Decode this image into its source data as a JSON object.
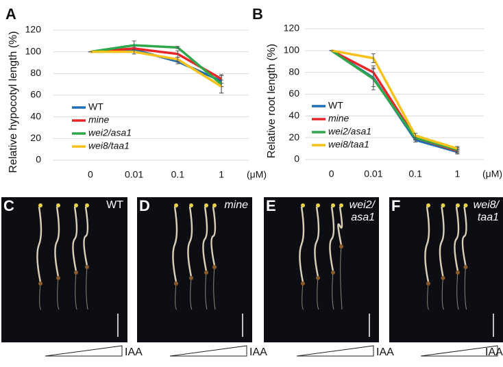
{
  "chart_data": [
    {
      "type": "line",
      "label": "A",
      "ylabel": "Relative hypocotyl length (%)",
      "xlabel": "(μM)",
      "categories": [
        "0",
        "0.01",
        "0.1",
        "1"
      ],
      "ylim": [
        0,
        120
      ],
      "yticks": [
        0,
        20,
        40,
        60,
        80,
        100,
        120
      ],
      "grid": true,
      "series": [
        {
          "name": "WT",
          "color": "#1f6fb4",
          "font_style": "normal",
          "values": [
            100,
            102,
            91,
            73
          ],
          "errors": [
            0,
            2,
            2,
            5
          ]
        },
        {
          "name": "mine",
          "color": "#e8262a",
          "font_style": "italic",
          "values": [
            100,
            103,
            98,
            75
          ],
          "errors": [
            0,
            2,
            3,
            4
          ]
        },
        {
          "name": "wei2/asa1",
          "color": "#2ea84a",
          "font_style": "italic",
          "values": [
            100,
            106,
            104,
            70
          ],
          "errors": [
            0,
            4,
            1,
            8
          ]
        },
        {
          "name": "wei8/taa1",
          "color": "#f6c21a",
          "font_style": "italic",
          "values": [
            100,
            100,
            93,
            68
          ],
          "errors": [
            0,
            2,
            2,
            6
          ]
        }
      ]
    },
    {
      "type": "line",
      "label": "B",
      "ylabel": "Relative root length (%)",
      "xlabel": "(μM)",
      "categories": [
        "0",
        "0.01",
        "0.1",
        "1"
      ],
      "ylim": [
        0,
        120
      ],
      "yticks": [
        0,
        20,
        40,
        60,
        80,
        100,
        120
      ],
      "grid": true,
      "series": [
        {
          "name": "WT",
          "color": "#1f6fb4",
          "font_style": "normal",
          "values": [
            100,
            75,
            18,
            7
          ],
          "errors": [
            0,
            8,
            2,
            2
          ]
        },
        {
          "name": "mine",
          "color": "#e8262a",
          "font_style": "italic",
          "values": [
            100,
            80,
            20,
            8
          ],
          "errors": [
            0,
            6,
            2,
            2
          ]
        },
        {
          "name": "wei2/asa1",
          "color": "#2ea84a",
          "font_style": "italic",
          "values": [
            100,
            74,
            20,
            9
          ],
          "errors": [
            0,
            10,
            2,
            2
          ]
        },
        {
          "name": "wei8/taa1",
          "color": "#f6c21a",
          "font_style": "italic",
          "values": [
            100,
            93,
            22,
            10
          ],
          "errors": [
            0,
            4,
            2,
            2
          ]
        }
      ]
    }
  ],
  "panels": [
    {
      "letter": "C",
      "label": [
        "WT"
      ],
      "font_style": "normal",
      "wedge_label": "IAA"
    },
    {
      "letter": "D",
      "label": [
        "mine"
      ],
      "font_style": "italic",
      "wedge_label": "IAA"
    },
    {
      "letter": "E",
      "label": [
        "wei2/",
        "asa1"
      ],
      "font_style": "italic",
      "wedge_label": "IAA"
    },
    {
      "letter": "F",
      "label": [
        "wei8/",
        "taa1"
      ],
      "font_style": "italic",
      "wedge_label": "IAA"
    }
  ]
}
